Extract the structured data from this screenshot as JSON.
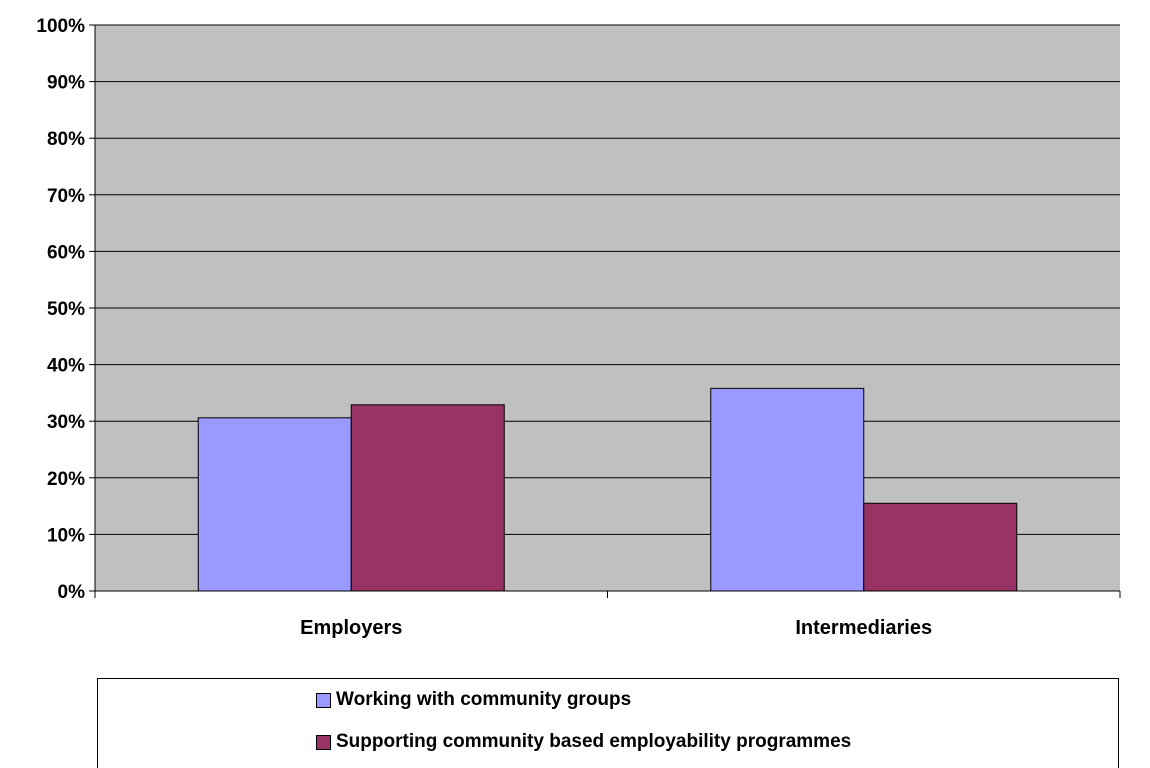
{
  "chart_data": {
    "type": "bar",
    "title": "",
    "xlabel": "",
    "ylabel": "",
    "categories": [
      "Employers",
      "Intermediaries"
    ],
    "series": [
      {
        "name": "Working with community groups",
        "color": "#9999ff",
        "values": [
          0.306,
          0.358
        ]
      },
      {
        "name": "Supporting community based employability programmes",
        "color": "#993366",
        "values": [
          0.329,
          0.155
        ]
      }
    ],
    "ylim": [
      0,
      1
    ],
    "yticks": [
      "0%",
      "10%",
      "20%",
      "30%",
      "40%",
      "50%",
      "60%",
      "70%",
      "80%",
      "90%",
      "100%"
    ],
    "grid": true,
    "plot_background": "#c0c0c0",
    "legend_position": "bottom"
  }
}
